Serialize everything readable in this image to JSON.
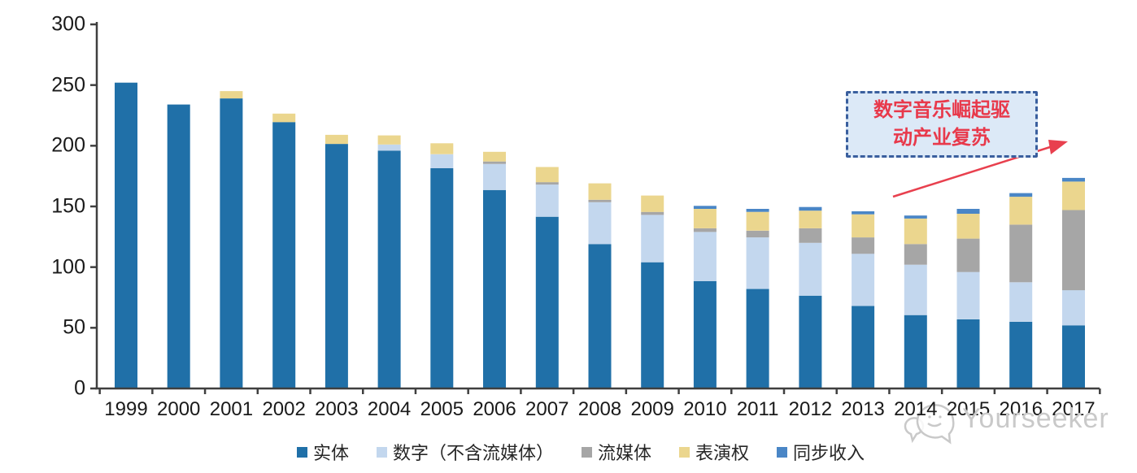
{
  "chart_data": {
    "type": "bar",
    "variant": "stacked-column",
    "title": "",
    "categories": [
      "1999",
      "2000",
      "2001",
      "2002",
      "2003",
      "2004",
      "2005",
      "2006",
      "2007",
      "2008",
      "2009",
      "2010",
      "2011",
      "2012",
      "2013",
      "2014",
      "2015",
      "2016",
      "2017"
    ],
    "series": [
      {
        "name": "实体",
        "color": "#2070a8",
        "values": [
          252,
          234,
          239,
          219.5,
          201.5,
          196,
          181.5,
          163.5,
          141.5,
          119,
          104,
          88.5,
          82,
          76.5,
          68,
          60.5,
          57,
          55,
          52
        ]
      },
      {
        "name": "数字（不含流媒体）",
        "color": "#c3d7ee",
        "values": [
          0,
          0,
          0,
          0,
          0,
          5,
          11.5,
          21.5,
          26.5,
          34.5,
          39,
          40.5,
          42.5,
          43.5,
          43,
          41.5,
          39,
          32.5,
          29
        ]
      },
      {
        "name": "流媒体",
        "color": "#a6a6a6",
        "values": [
          0,
          0,
          0,
          0,
          0,
          0,
          0,
          2,
          2,
          2,
          2.5,
          3,
          5.5,
          12,
          13.5,
          17,
          27.5,
          47.5,
          66
        ]
      },
      {
        "name": "表演权",
        "color": "#ebd68e",
        "values": [
          0,
          0,
          6,
          7,
          7.5,
          7.5,
          9,
          8,
          12.5,
          13.5,
          13.5,
          16,
          15.5,
          14.5,
          19,
          21,
          20.5,
          23,
          23.5
        ]
      },
      {
        "name": "同步收入",
        "color": "#4a86c6",
        "values": [
          0,
          0,
          0,
          0,
          0,
          0,
          0,
          0,
          0,
          0,
          0,
          2.5,
          2.5,
          3,
          2.5,
          2.5,
          4,
          3,
          3
        ]
      }
    ],
    "ylim": [
      0,
      300
    ],
    "yticks": [
      0,
      50,
      100,
      150,
      200,
      250,
      300
    ],
    "grid": "off",
    "legend_position": "bottom",
    "axis_color": "#3f3f3f"
  },
  "annotation": {
    "text": "数字音乐崛起驱\n动产业复苏",
    "text_color": "#e8394b",
    "border_color": "#3a5f9e",
    "fill_color": "#dce9f7",
    "arrow_color": "#e8404e"
  },
  "watermark": {
    "text": "Yourseeker",
    "color": "#c9c9c9",
    "logo": "chat-smiley-icon"
  }
}
